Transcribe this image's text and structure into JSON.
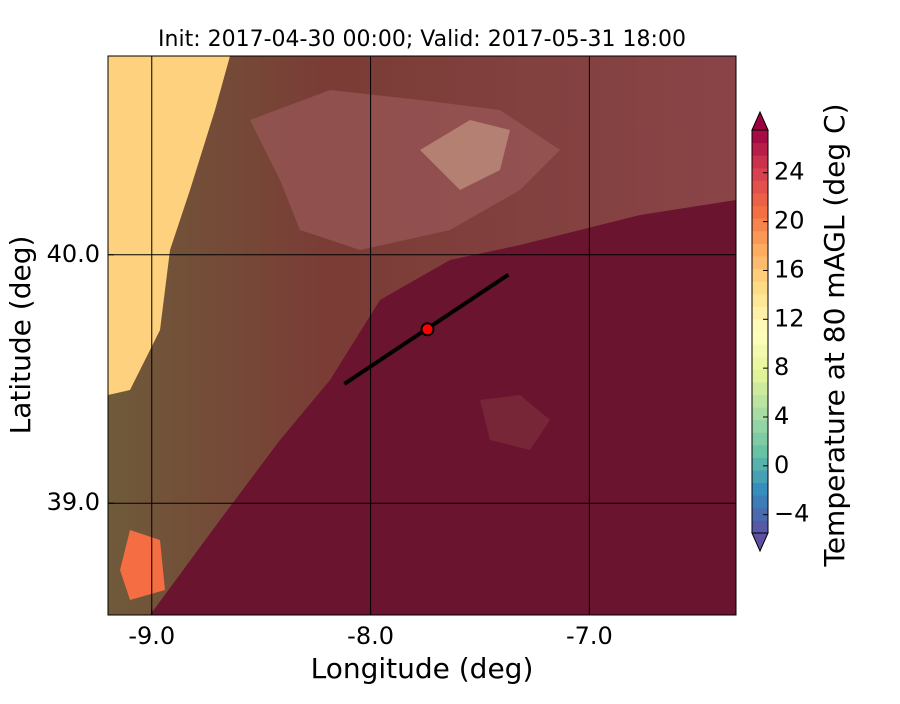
{
  "chart_data": {
    "type": "map",
    "title": "Init: 2017-04-30 00:00; Valid: 2017-05-31 18:00",
    "x_label": "Longitude (deg)",
    "y_label": "Latitude (deg)",
    "xlim": [
      -9.2,
      -6.33
    ],
    "ylim": [
      38.55,
      40.8
    ],
    "xticks": [
      {
        "value": -9,
        "label": "-9.0"
      },
      {
        "value": -8,
        "label": "-8.0"
      },
      {
        "value": -7,
        "label": "-7.0"
      }
    ],
    "yticks": [
      {
        "value": 39,
        "label": "39.0"
      },
      {
        "value": 40,
        "label": "40.0"
      }
    ],
    "grid": true,
    "point": {
      "x": -7.74,
      "y": 39.7,
      "color": "#ff0000"
    },
    "transect": {
      "x": [
        -8.12,
        -7.37
      ],
      "y": [
        39.48,
        39.92
      ],
      "color": "#000000"
    },
    "colorbar": {
      "label": "Temperature at 80 mAGL (deg C)",
      "clim": [
        -5.5,
        27.5
      ],
      "ticks": [
        {
          "value": -4,
          "label": "−4"
        },
        0,
        4,
        8,
        12,
        16,
        20,
        24
      ],
      "colormap": [
        "#5e4fa2",
        "#3288bd",
        "#66c2a5",
        "#abdda4",
        "#e6f598",
        "#ffffbf",
        "#fee08b",
        "#fdae61",
        "#f46d43",
        "#d53e4f",
        "#9e0142"
      ]
    }
  }
}
